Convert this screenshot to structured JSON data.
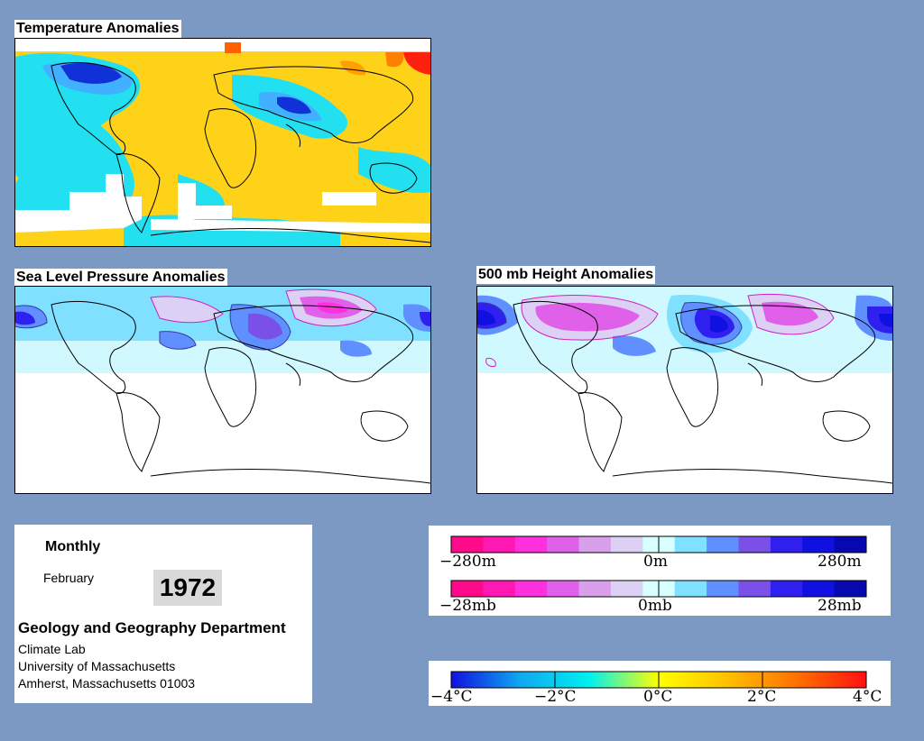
{
  "panels": {
    "temperature": {
      "title": "Temperature Anomalies"
    },
    "slp": {
      "title": "Sea Level Pressure Anomalies"
    },
    "height": {
      "title": "500 mb Height Anomalies"
    }
  },
  "info": {
    "period": "Monthly",
    "month": "February",
    "year": "1972",
    "department": "Geology and Geography Department",
    "lab": "Climate Lab",
    "university": "University of Massachusetts",
    "address": "Amherst, Massachusetts 01003"
  },
  "legends": {
    "height": {
      "labels": [
        "−280m",
        "0m",
        "280m"
      ],
      "colors": [
        "#ff0a8a",
        "#ff18b4",
        "#ff30dd",
        "#e060ea",
        "#d8a0ea",
        "#dcd0f4",
        "#d8ffff",
        "#80e0ff",
        "#6090ff",
        "#7a50e8",
        "#3020f0",
        "#1010e0",
        "#0808b0"
      ]
    },
    "pressure": {
      "labels": [
        "−28mb",
        "0mb",
        "28mb"
      ],
      "colors": [
        "#ff0a8a",
        "#ff18b4",
        "#ff30dd",
        "#e060ea",
        "#d8a0ea",
        "#dcd0f4",
        "#d8ffff",
        "#80e0ff",
        "#6090ff",
        "#7a50e8",
        "#3020f0",
        "#1010e0",
        "#0808b0"
      ]
    },
    "temperature": {
      "labels": [
        "−4°C",
        "−2°C",
        "0°C",
        "2°C",
        "4°C"
      ],
      "stops": [
        "#1010e0",
        "#10a8f0",
        "#00f0f0",
        "#ffff00",
        "#ffc000",
        "#ff7000",
        "#ff1010"
      ]
    }
  }
}
